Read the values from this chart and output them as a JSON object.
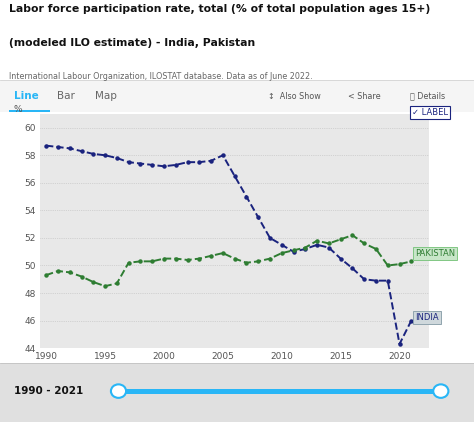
{
  "title_line1": "Labor force participation rate, total (% of total population ages 15+)",
  "title_line2": "(modeled ILO estimate) - India, Pakistan",
  "subtitle": "International Labour Organization, ILOSTAT database. Data as of June 2022.",
  "tab_labels": [
    "Line",
    "Bar",
    "Map"
  ],
  "active_tab": "Line",
  "ylabel": "%",
  "ylim": [
    44,
    61
  ],
  "yticks": [
    44,
    46,
    48,
    50,
    52,
    54,
    56,
    58,
    60
  ],
  "xlim": [
    1989.5,
    2022.5
  ],
  "xticks": [
    1990,
    1995,
    2000,
    2005,
    2010,
    2015,
    2020
  ],
  "background_color": "#f0f0f0",
  "plot_bg": "#e8e8e8",
  "india_color": "#1a237e",
  "pakistan_color": "#2e7d32",
  "india_years": [
    1990,
    1991,
    1992,
    1993,
    1994,
    1995,
    1996,
    1997,
    1998,
    1999,
    2000,
    2001,
    2002,
    2003,
    2004,
    2005,
    2006,
    2007,
    2008,
    2009,
    2010,
    2011,
    2012,
    2013,
    2014,
    2015,
    2016,
    2017,
    2018,
    2019,
    2020,
    2021
  ],
  "india_values": [
    58.7,
    58.6,
    58.5,
    58.3,
    58.1,
    58.0,
    57.8,
    57.5,
    57.4,
    57.3,
    57.2,
    57.3,
    57.5,
    57.5,
    57.6,
    58.0,
    56.5,
    55.0,
    53.5,
    52.0,
    51.5,
    51.0,
    51.2,
    51.5,
    51.3,
    50.5,
    49.8,
    49.0,
    48.9,
    48.9,
    44.3,
    46.0
  ],
  "pakistan_years": [
    1990,
    1991,
    1992,
    1993,
    1994,
    1995,
    1996,
    1997,
    1998,
    1999,
    2000,
    2001,
    2002,
    2003,
    2004,
    2005,
    2006,
    2007,
    2008,
    2009,
    2010,
    2011,
    2012,
    2013,
    2014,
    2015,
    2016,
    2017,
    2018,
    2019,
    2020,
    2021
  ],
  "pakistan_values": [
    49.3,
    49.6,
    49.5,
    49.2,
    48.8,
    48.5,
    48.7,
    50.2,
    50.3,
    50.3,
    50.5,
    50.5,
    50.4,
    50.5,
    50.7,
    50.9,
    50.5,
    50.2,
    50.3,
    50.5,
    50.9,
    51.1,
    51.3,
    51.8,
    51.6,
    51.9,
    52.2,
    51.6,
    51.2,
    50.0,
    50.1,
    50.3
  ],
  "slider_label": "1990 - 2021",
  "slider_color": "#29b6f6",
  "label_india": "INDIA",
  "label_pakistan": "PAKISTAN",
  "checkbox_label": "LABEL",
  "fig_bg": "#ffffff",
  "tab_bg": "#f5f5f5",
  "slider_bg": "#e0e0e0"
}
